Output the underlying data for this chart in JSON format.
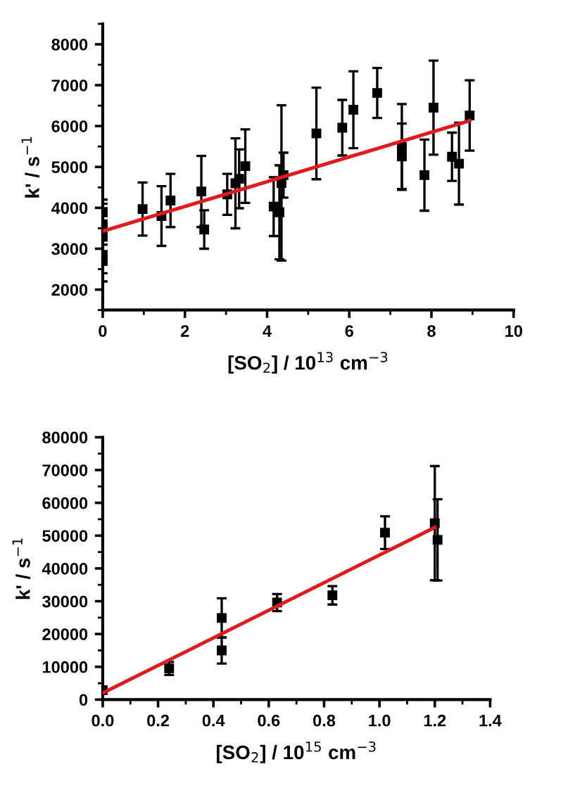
{
  "chart_data": [
    {
      "type": "scatter",
      "xlabel": "[SO$_{2}$] / 10$^{13}$ cm$^{−3}$",
      "ylabel": "k' / s$^{−1}$",
      "grid": false,
      "legend": false,
      "xlim": [
        0,
        10
      ],
      "ylim": [
        1500,
        8500
      ],
      "xticks": [
        0,
        2,
        4,
        6,
        8,
        10,
        {
          "value": 1,
          "label": null
        },
        {
          "value": 3,
          "label": null
        },
        {
          "value": 5,
          "label": null
        },
        {
          "value": 7,
          "label": null
        },
        {
          "value": 9,
          "label": null
        }
      ],
      "yticks": [
        2000,
        3000,
        4000,
        5000,
        6000,
        7000,
        8000,
        {
          "value": 1500,
          "label": null
        },
        {
          "value": 2500,
          "label": null
        },
        {
          "value": 3500,
          "label": null
        },
        {
          "value": 4500,
          "label": null
        },
        {
          "value": 5500,
          "label": null
        },
        {
          "value": 6500,
          "label": null
        },
        {
          "value": 7500,
          "label": null
        },
        {
          "value": 8500,
          "label": null
        }
      ],
      "series": [
        {
          "marker": "square",
          "color": "#000000",
          "x": [
            0,
            0,
            0,
            0,
            0,
            0.97,
            1.43,
            1.65,
            2.4,
            2.47,
            3.03,
            3.23,
            3.32,
            3.47,
            4.16,
            4.3,
            4.35,
            4.4,
            5.2,
            5.83,
            6.1,
            6.68,
            7.28,
            7.28,
            7.83,
            8.05,
            8.5,
            8.67,
            8.93
          ],
          "values": [
            2700,
            2850,
            3300,
            3600,
            3900,
            3970,
            3800,
            4180,
            4400,
            3470,
            4330,
            4600,
            4710,
            5020,
            4030,
            3890,
            4610,
            4800,
            5820,
            5960,
            6400,
            6810,
            5490,
            5260,
            4800,
            6450,
            5250,
            5080,
            6260
          ],
          "errors": [
            500,
            450,
            500,
            500,
            300,
            650,
            730,
            650,
            870,
            470,
            500,
            1100,
            720,
            900,
            720,
            1150,
            1900,
            550,
            1120,
            680,
            940,
            610,
            1050,
            800,
            870,
            1150,
            590,
            1000,
            860
          ]
        },
        {
          "type": "line",
          "color": "#e31a1c",
          "x": [
            0,
            8.93
          ],
          "values": [
            3430,
            6130
          ]
        }
      ]
    },
    {
      "type": "scatter",
      "xlabel": "[SO$_{2}$] / 10$^{15}$ cm$^{−3}$",
      "ylabel": "k' / s$^{−1}$",
      "grid": false,
      "legend": false,
      "xlim": [
        0,
        1.4
      ],
      "ylim": [
        0,
        80000
      ],
      "xticks": [
        {
          "value": 0,
          "label": "0.0"
        },
        0.2,
        0.4,
        0.6,
        0.8,
        {
          "value": 1,
          "label": "1.0"
        },
        1.2,
        1.4,
        {
          "value": 0.1,
          "label": null
        },
        {
          "value": 0.3,
          "label": null
        },
        {
          "value": 0.5,
          "label": null
        },
        {
          "value": 0.7,
          "label": null
        },
        {
          "value": 0.9,
          "label": null
        },
        {
          "value": 1.1,
          "label": null
        },
        {
          "value": 1.3,
          "label": null
        }
      ],
      "yticks": [
        0,
        10000,
        20000,
        30000,
        40000,
        50000,
        60000,
        70000,
        80000,
        {
          "value": 5000,
          "label": null
        },
        {
          "value": 15000,
          "label": null
        },
        {
          "value": 25000,
          "label": null
        },
        {
          "value": 35000,
          "label": null
        },
        {
          "value": 45000,
          "label": null
        },
        {
          "value": 55000,
          "label": null
        },
        {
          "value": 65000,
          "label": null
        },
        {
          "value": 75000,
          "label": null
        }
      ],
      "series": [
        {
          "marker": "square",
          "color": "#000000",
          "x": [
            0,
            0.24,
            0.43,
            0.43,
            0.63,
            0.83,
            1.02,
            1.2,
            1.21
          ],
          "values": [
            2900,
            9500,
            24900,
            15000,
            29600,
            31800,
            50900,
            53800,
            48700
          ],
          "errors": [
            null,
            2000,
            6000,
            4000,
            2600,
            2800,
            5000,
            17400,
            12400
          ]
        },
        {
          "type": "line",
          "color": "#e31a1c",
          "x": [
            0,
            1.2
          ],
          "values": [
            2000,
            52500
          ]
        }
      ]
    }
  ]
}
